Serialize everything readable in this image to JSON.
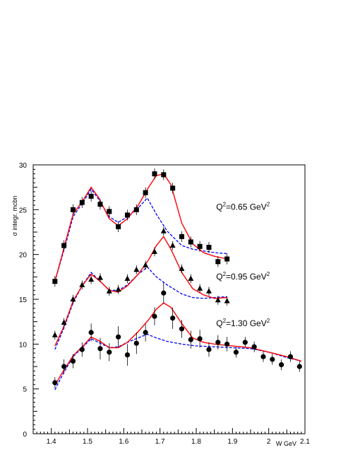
{
  "chart_data": {
    "type": "scatter",
    "xlabel": "W GeV",
    "ylabel": "σ integr. mcbn",
    "xlim": [
      1.35,
      2.1
    ],
    "ylim": [
      0,
      30
    ],
    "xticks": [
      "1.4",
      "1.5",
      "1.6",
      "1.7",
      "1.8",
      "1.9",
      "2",
      "2.1"
    ],
    "yticks": [
      "0",
      "5",
      "10",
      "15",
      "20",
      "25",
      "30"
    ],
    "grid": false,
    "annotations": [
      {
        "base": "Q",
        "sup1": "2",
        "mid": "=0.65 GeV",
        "sup2": "2",
        "x": 1.855,
        "y": 25.0
      },
      {
        "base": "Q",
        "sup1": "2",
        "mid": "=0.95 GeV",
        "sup2": "2",
        "x": 1.855,
        "y": 17.2
      },
      {
        "base": "Q",
        "sup1": "2",
        "mid": "=1.30 GeV",
        "sup2": "2",
        "x": 1.855,
        "y": 12.0
      }
    ],
    "colors": {
      "solid": "#ff0000",
      "dashed": "#0000ff",
      "points": "#000000"
    },
    "series": [
      {
        "marker": "square",
        "points": [
          [
            1.41,
            17.0,
            0.6
          ],
          [
            1.435,
            21.0,
            0.6
          ],
          [
            1.46,
            25.0,
            0.6
          ],
          [
            1.485,
            25.8,
            0.6
          ],
          [
            1.51,
            26.5,
            0.6
          ],
          [
            1.535,
            25.6,
            0.6
          ],
          [
            1.56,
            24.8,
            0.6
          ],
          [
            1.585,
            23.1,
            0.6
          ],
          [
            1.61,
            24.4,
            0.6
          ],
          [
            1.635,
            25.0,
            0.6
          ],
          [
            1.66,
            26.9,
            0.6
          ],
          [
            1.685,
            29.0,
            0.6
          ],
          [
            1.71,
            28.9,
            0.6
          ],
          [
            1.735,
            27.4,
            0.6
          ],
          [
            1.76,
            22.0,
            0.6
          ],
          [
            1.785,
            21.4,
            0.6
          ],
          [
            1.81,
            20.9,
            0.6
          ],
          [
            1.835,
            20.8,
            0.6
          ],
          [
            1.86,
            19.2,
            0.6
          ],
          [
            1.885,
            19.5,
            0.6
          ]
        ],
        "solid": [
          [
            1.41,
            17.0
          ],
          [
            1.44,
            21.5
          ],
          [
            1.46,
            24.5
          ],
          [
            1.49,
            26.2
          ],
          [
            1.51,
            27.5
          ],
          [
            1.53,
            26.4
          ],
          [
            1.56,
            24.0
          ],
          [
            1.585,
            23.2
          ],
          [
            1.61,
            24.0
          ],
          [
            1.64,
            25.5
          ],
          [
            1.67,
            27.6
          ],
          [
            1.69,
            28.8
          ],
          [
            1.71,
            29.0
          ],
          [
            1.73,
            27.8
          ],
          [
            1.76,
            23.5
          ],
          [
            1.79,
            21.2
          ],
          [
            1.82,
            20.2
          ],
          [
            1.85,
            19.8
          ],
          [
            1.885,
            19.5
          ]
        ],
        "dashed": [
          [
            1.41,
            17.0
          ],
          [
            1.44,
            21.2
          ],
          [
            1.46,
            24.2
          ],
          [
            1.49,
            26.0
          ],
          [
            1.51,
            27.3
          ],
          [
            1.53,
            26.2
          ],
          [
            1.56,
            24.2
          ],
          [
            1.585,
            23.6
          ],
          [
            1.61,
            24.2
          ],
          [
            1.64,
            25.2
          ],
          [
            1.665,
            26.3
          ],
          [
            1.69,
            24.5
          ],
          [
            1.72,
            22.6
          ],
          [
            1.76,
            21.0
          ],
          [
            1.79,
            20.6
          ],
          [
            1.82,
            20.4
          ],
          [
            1.85,
            20.2
          ],
          [
            1.885,
            20.1
          ]
        ]
      },
      {
        "marker": "triangle",
        "points": [
          [
            1.41,
            11.0,
            0.5
          ],
          [
            1.435,
            12.4,
            0.5
          ],
          [
            1.46,
            15.0,
            0.5
          ],
          [
            1.485,
            16.6,
            0.5
          ],
          [
            1.51,
            17.2,
            0.5
          ],
          [
            1.535,
            17.4,
            0.5
          ],
          [
            1.56,
            15.9,
            0.5
          ],
          [
            1.585,
            16.1,
            0.5
          ],
          [
            1.61,
            17.3,
            0.5
          ],
          [
            1.635,
            18.3,
            0.5
          ],
          [
            1.66,
            18.8,
            0.5
          ],
          [
            1.685,
            20.3,
            0.5
          ],
          [
            1.71,
            22.6,
            0.5
          ],
          [
            1.735,
            21.0,
            0.5
          ],
          [
            1.76,
            18.4,
            0.5
          ],
          [
            1.785,
            17.3,
            0.5
          ],
          [
            1.81,
            16.2,
            0.5
          ],
          [
            1.835,
            15.9,
            0.5
          ],
          [
            1.86,
            14.9,
            0.5
          ],
          [
            1.885,
            14.8,
            0.5
          ]
        ],
        "solid": [
          [
            1.41,
            9.8
          ],
          [
            1.435,
            12.0
          ],
          [
            1.46,
            14.8
          ],
          [
            1.485,
            16.5
          ],
          [
            1.51,
            17.8
          ],
          [
            1.535,
            17.0
          ],
          [
            1.56,
            16.0
          ],
          [
            1.585,
            15.8
          ],
          [
            1.61,
            16.5
          ],
          [
            1.64,
            17.8
          ],
          [
            1.67,
            19.5
          ],
          [
            1.69,
            21.0
          ],
          [
            1.71,
            22.0
          ],
          [
            1.73,
            20.6
          ],
          [
            1.76,
            18.0
          ],
          [
            1.79,
            16.2
          ],
          [
            1.82,
            15.5
          ],
          [
            1.85,
            15.1
          ],
          [
            1.885,
            15.2
          ]
        ],
        "dashed": [
          [
            1.41,
            9.4
          ],
          [
            1.435,
            11.8
          ],
          [
            1.46,
            14.6
          ],
          [
            1.485,
            16.5
          ],
          [
            1.51,
            18.0
          ],
          [
            1.535,
            17.0
          ],
          [
            1.56,
            16.0
          ],
          [
            1.585,
            16.0
          ],
          [
            1.61,
            16.6
          ],
          [
            1.64,
            17.8
          ],
          [
            1.665,
            18.6
          ],
          [
            1.69,
            17.5
          ],
          [
            1.72,
            16.6
          ],
          [
            1.76,
            15.6
          ],
          [
            1.79,
            15.2
          ],
          [
            1.82,
            15.1
          ],
          [
            1.85,
            15.2
          ],
          [
            1.885,
            15.3
          ]
        ]
      },
      {
        "marker": "circle",
        "points": [
          [
            1.41,
            5.7,
            0.6
          ],
          [
            1.435,
            7.5,
            0.8
          ],
          [
            1.46,
            8.1,
            0.8
          ],
          [
            1.485,
            9.4,
            0.8
          ],
          [
            1.51,
            11.3,
            1.0
          ],
          [
            1.535,
            9.5,
            1.2
          ],
          [
            1.56,
            9.1,
            1.0
          ],
          [
            1.585,
            10.8,
            1.2
          ],
          [
            1.61,
            8.8,
            1.2
          ],
          [
            1.635,
            10.1,
            1.2
          ],
          [
            1.66,
            11.3,
            1.0
          ],
          [
            1.685,
            13.1,
            1.0
          ],
          [
            1.71,
            15.7,
            1.2
          ],
          [
            1.735,
            12.9,
            1.2
          ],
          [
            1.76,
            11.7,
            1.0
          ],
          [
            1.785,
            10.5,
            1.0
          ],
          [
            1.81,
            10.6,
            1.0
          ],
          [
            1.835,
            9.4,
            0.8
          ],
          [
            1.86,
            10.2,
            0.8
          ],
          [
            1.885,
            10.0,
            0.8
          ],
          [
            1.91,
            9.1,
            0.6
          ],
          [
            1.935,
            10.2,
            0.6
          ],
          [
            1.96,
            9.7,
            0.6
          ],
          [
            1.985,
            8.6,
            0.6
          ],
          [
            2.01,
            8.3,
            0.6
          ],
          [
            2.035,
            7.7,
            0.6
          ],
          [
            2.06,
            8.6,
            0.6
          ],
          [
            2.085,
            7.5,
            0.6
          ]
        ],
        "solid": [
          [
            1.41,
            5.4
          ],
          [
            1.43,
            6.8
          ],
          [
            1.46,
            8.7
          ],
          [
            1.49,
            9.9
          ],
          [
            1.51,
            10.8
          ],
          [
            1.535,
            10.3
          ],
          [
            1.56,
            9.6
          ],
          [
            1.585,
            9.6
          ],
          [
            1.61,
            10.2
          ],
          [
            1.64,
            11.4
          ],
          [
            1.67,
            12.8
          ],
          [
            1.69,
            13.9
          ],
          [
            1.71,
            14.6
          ],
          [
            1.73,
            14.1
          ],
          [
            1.76,
            12.3
          ],
          [
            1.79,
            10.7
          ],
          [
            1.82,
            10.2
          ],
          [
            1.85,
            10.0
          ],
          [
            1.9,
            9.8
          ],
          [
            1.95,
            9.6
          ],
          [
            2.0,
            9.1
          ],
          [
            2.05,
            8.6
          ],
          [
            2.09,
            8.1
          ]
        ],
        "dashed": [
          [
            1.41,
            4.9
          ],
          [
            1.43,
            6.5
          ],
          [
            1.46,
            8.6
          ],
          [
            1.49,
            9.8
          ],
          [
            1.51,
            10.6
          ],
          [
            1.535,
            10.1
          ],
          [
            1.56,
            9.6
          ],
          [
            1.585,
            9.7
          ],
          [
            1.61,
            10.2
          ],
          [
            1.64,
            10.7
          ],
          [
            1.665,
            11.1
          ],
          [
            1.69,
            10.7
          ],
          [
            1.72,
            10.3
          ],
          [
            1.76,
            10.0
          ],
          [
            1.8,
            9.8
          ],
          [
            1.85,
            9.7
          ],
          [
            1.9,
            9.6
          ],
          [
            1.95,
            9.5
          ],
          [
            2.0,
            9.1
          ],
          [
            2.05,
            8.5
          ],
          [
            2.09,
            8.1
          ]
        ]
      }
    ]
  }
}
